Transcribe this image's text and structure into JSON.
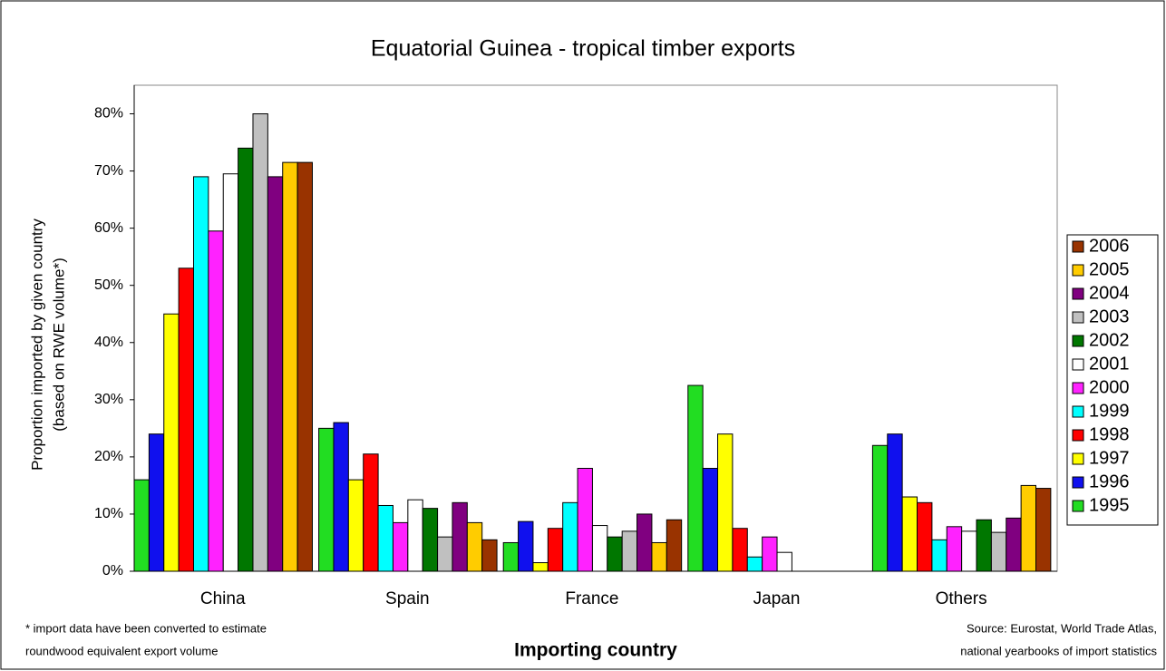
{
  "chart_data": {
    "type": "bar",
    "title": "Equatorial Guinea - tropical timber exports",
    "y_label": [
      "Proportion imported by given country",
      "(based on RWE volume*)"
    ],
    "x_label": "Importing country",
    "footnote": [
      "* import data have been converted to estimate",
      "roundwood equivalent export volume"
    ],
    "source": [
      "Source:  Eurostat, World Trade Atlas,",
      "national yearbooks of import statistics"
    ],
    "categories": [
      "China",
      "Spain",
      "France",
      "Japan",
      "Others"
    ],
    "ylim": [
      0,
      85
    ],
    "yticks": [
      {
        "value": 0,
        "label": "0%"
      },
      {
        "value": 10,
        "label": "10%"
      },
      {
        "value": 20,
        "label": "20%"
      },
      {
        "value": 30,
        "label": "30%"
      },
      {
        "value": 40,
        "label": "40%"
      },
      {
        "value": 50,
        "label": "50%"
      },
      {
        "value": 60,
        "label": "60%"
      },
      {
        "value": 70,
        "label": "70%"
      },
      {
        "value": 80,
        "label": "80%"
      }
    ],
    "series": [
      {
        "name": "1995",
        "color": "#22dd22",
        "values": [
          16,
          25,
          5,
          32.5,
          22
        ]
      },
      {
        "name": "1996",
        "color": "#1010ee",
        "values": [
          24,
          26,
          8.7,
          18,
          24
        ]
      },
      {
        "name": "1997",
        "color": "#ffff00",
        "values": [
          45,
          16,
          1.5,
          24,
          13
        ]
      },
      {
        "name": "1998",
        "color": "#ff0000",
        "values": [
          53,
          20.5,
          7.5,
          7.5,
          12
        ]
      },
      {
        "name": "1999",
        "color": "#00ffff",
        "values": [
          69,
          11.5,
          12,
          2.5,
          5.5
        ]
      },
      {
        "name": "2000",
        "color": "#ff22ff",
        "values": [
          59.5,
          8.5,
          18,
          6,
          7.8
        ]
      },
      {
        "name": "2001",
        "color": "#ffffff",
        "values": [
          69.5,
          12.5,
          8,
          3.3,
          7
        ]
      },
      {
        "name": "2002",
        "color": "#007700",
        "values": [
          74,
          11,
          6,
          0,
          9
        ]
      },
      {
        "name": "2003",
        "color": "#c0c0c0",
        "values": [
          80,
          6,
          7,
          0,
          6.8
        ]
      },
      {
        "name": "2004",
        "color": "#800080",
        "values": [
          69,
          12,
          10,
          0,
          9.3
        ]
      },
      {
        "name": "2005",
        "color": "#ffcc00",
        "values": [
          71.5,
          8.5,
          5,
          0,
          15
        ]
      },
      {
        "name": "2006",
        "color": "#993300",
        "values": [
          71.5,
          5.5,
          9,
          0,
          14.5
        ]
      }
    ]
  }
}
